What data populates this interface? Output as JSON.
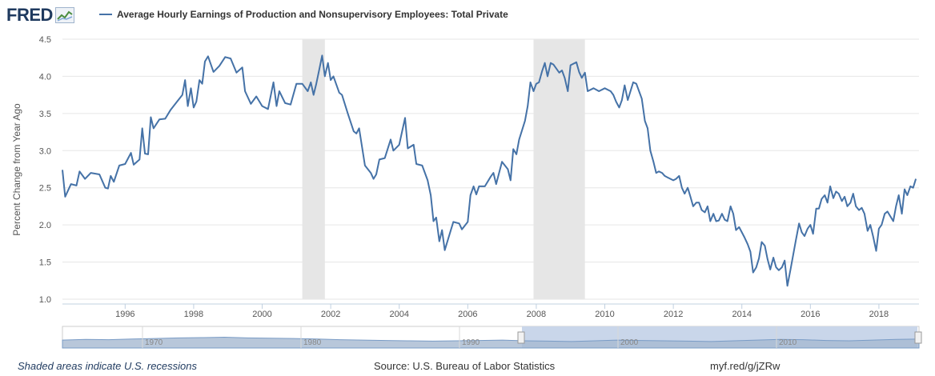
{
  "brand": {
    "name": "FRED",
    "mark": "line-chart-logo-icon"
  },
  "legend": {
    "label": "Average Hourly Earnings of Production and Nonsupervisory Employees: Total Private",
    "color": "#4572a7"
  },
  "footer": {
    "note": "Shaded areas indicate U.S. recessions",
    "source": "Source: U.S. Bureau of Labor Statistics",
    "link": "myf.red/g/jZRw"
  },
  "colors": {
    "line": "#4572a7",
    "recession": "#e6e6e6",
    "grid": "#e6e6e6",
    "navigator_fill": "#a6b9d1",
    "navigator_sel": "#c9d6ea"
  },
  "chart_data": {
    "type": "line",
    "title": "Average Hourly Earnings of Production and Nonsupervisory Employees: Total Private",
    "ylabel": "Percent Change from Year Ago",
    "xlabel": "",
    "xlim": [
      1994.17,
      2019.17
    ],
    "ylim": [
      1.0,
      4.5
    ],
    "yticks": [
      "1.0",
      "1.5",
      "2.0",
      "2.5",
      "3.0",
      "3.5",
      "4.0",
      "4.5"
    ],
    "xticks": [
      "1996",
      "1998",
      "2000",
      "2002",
      "2004",
      "2006",
      "2008",
      "2010",
      "2012",
      "2014",
      "2016",
      "2018"
    ],
    "recessions": [
      [
        2001.17,
        2001.83
      ],
      [
        2007.92,
        2009.42
      ]
    ],
    "navigator_ticks": [
      "1970",
      "1980",
      "1990",
      "2000",
      "2010"
    ],
    "series": [
      {
        "name": "Average Hourly Earnings of Production and Nonsupervisory Employees: Total Private",
        "points": [
          [
            1994.17,
            2.74
          ],
          [
            1994.25,
            2.38
          ],
          [
            1994.42,
            2.55
          ],
          [
            1994.58,
            2.53
          ],
          [
            1994.67,
            2.72
          ],
          [
            1994.83,
            2.62
          ],
          [
            1995.0,
            2.7
          ],
          [
            1995.25,
            2.68
          ],
          [
            1995.42,
            2.5
          ],
          [
            1995.5,
            2.49
          ],
          [
            1995.58,
            2.66
          ],
          [
            1995.67,
            2.58
          ],
          [
            1995.83,
            2.8
          ],
          [
            1996.0,
            2.82
          ],
          [
            1996.17,
            2.97
          ],
          [
            1996.25,
            2.81
          ],
          [
            1996.42,
            2.88
          ],
          [
            1996.5,
            3.3
          ],
          [
            1996.58,
            2.96
          ],
          [
            1996.67,
            2.95
          ],
          [
            1996.75,
            3.45
          ],
          [
            1996.83,
            3.3
          ],
          [
            1997.0,
            3.42
          ],
          [
            1997.17,
            3.43
          ],
          [
            1997.33,
            3.55
          ],
          [
            1997.5,
            3.65
          ],
          [
            1997.67,
            3.75
          ],
          [
            1997.75,
            3.95
          ],
          [
            1997.83,
            3.6
          ],
          [
            1997.92,
            3.84
          ],
          [
            1998.0,
            3.58
          ],
          [
            1998.08,
            3.66
          ],
          [
            1998.17,
            3.95
          ],
          [
            1998.25,
            3.9
          ],
          [
            1998.33,
            4.2
          ],
          [
            1998.42,
            4.27
          ],
          [
            1998.58,
            4.06
          ],
          [
            1998.75,
            4.14
          ],
          [
            1998.92,
            4.26
          ],
          [
            1999.08,
            4.24
          ],
          [
            1999.25,
            4.05
          ],
          [
            1999.42,
            4.12
          ],
          [
            1999.5,
            3.8
          ],
          [
            1999.67,
            3.63
          ],
          [
            1999.83,
            3.73
          ],
          [
            2000.0,
            3.6
          ],
          [
            2000.17,
            3.56
          ],
          [
            2000.33,
            3.92
          ],
          [
            2000.42,
            3.6
          ],
          [
            2000.5,
            3.8
          ],
          [
            2000.67,
            3.64
          ],
          [
            2000.83,
            3.62
          ],
          [
            2001.0,
            3.9
          ],
          [
            2001.17,
            3.9
          ],
          [
            2001.33,
            3.8
          ],
          [
            2001.42,
            3.92
          ],
          [
            2001.5,
            3.75
          ],
          [
            2001.58,
            3.9
          ],
          [
            2001.67,
            4.1
          ],
          [
            2001.75,
            4.28
          ],
          [
            2001.83,
            4.0
          ],
          [
            2001.92,
            4.18
          ],
          [
            2002.0,
            3.95
          ],
          [
            2002.08,
            4.0
          ],
          [
            2002.25,
            3.78
          ],
          [
            2002.33,
            3.75
          ],
          [
            2002.5,
            3.5
          ],
          [
            2002.67,
            3.26
          ],
          [
            2002.75,
            3.23
          ],
          [
            2002.83,
            3.3
          ],
          [
            2003.0,
            2.8
          ],
          [
            2003.17,
            2.7
          ],
          [
            2003.25,
            2.62
          ],
          [
            2003.33,
            2.68
          ],
          [
            2003.42,
            2.88
          ],
          [
            2003.58,
            2.9
          ],
          [
            2003.75,
            3.15
          ],
          [
            2003.83,
            3.0
          ],
          [
            2004.0,
            3.08
          ],
          [
            2004.17,
            3.44
          ],
          [
            2004.25,
            3.03
          ],
          [
            2004.42,
            3.08
          ],
          [
            2004.5,
            2.82
          ],
          [
            2004.67,
            2.8
          ],
          [
            2004.83,
            2.6
          ],
          [
            2004.92,
            2.4
          ],
          [
            2005.0,
            2.05
          ],
          [
            2005.08,
            2.1
          ],
          [
            2005.17,
            1.78
          ],
          [
            2005.25,
            1.93
          ],
          [
            2005.33,
            1.66
          ],
          [
            2005.5,
            1.92
          ],
          [
            2005.58,
            2.04
          ],
          [
            2005.75,
            2.02
          ],
          [
            2005.83,
            1.94
          ],
          [
            2006.0,
            2.04
          ],
          [
            2006.08,
            2.4
          ],
          [
            2006.17,
            2.52
          ],
          [
            2006.25,
            2.41
          ],
          [
            2006.33,
            2.52
          ],
          [
            2006.5,
            2.52
          ],
          [
            2006.67,
            2.65
          ],
          [
            2006.75,
            2.7
          ],
          [
            2006.83,
            2.55
          ],
          [
            2007.0,
            2.85
          ],
          [
            2007.17,
            2.75
          ],
          [
            2007.25,
            2.6
          ],
          [
            2007.33,
            3.02
          ],
          [
            2007.42,
            2.95
          ],
          [
            2007.5,
            3.15
          ],
          [
            2007.67,
            3.4
          ],
          [
            2007.75,
            3.6
          ],
          [
            2007.83,
            3.92
          ],
          [
            2007.92,
            3.8
          ],
          [
            2008.0,
            3.9
          ],
          [
            2008.08,
            3.92
          ],
          [
            2008.17,
            4.07
          ],
          [
            2008.25,
            4.18
          ],
          [
            2008.33,
            4.0
          ],
          [
            2008.42,
            4.18
          ],
          [
            2008.5,
            4.16
          ],
          [
            2008.67,
            4.05
          ],
          [
            2008.75,
            4.08
          ],
          [
            2008.83,
            3.98
          ],
          [
            2008.92,
            3.8
          ],
          [
            2009.0,
            4.15
          ],
          [
            2009.17,
            4.19
          ],
          [
            2009.25,
            4.06
          ],
          [
            2009.33,
            3.98
          ],
          [
            2009.42,
            4.05
          ],
          [
            2009.5,
            3.8
          ],
          [
            2009.67,
            3.84
          ],
          [
            2009.83,
            3.8
          ],
          [
            2010.0,
            3.84
          ],
          [
            2010.17,
            3.8
          ],
          [
            2010.25,
            3.75
          ],
          [
            2010.33,
            3.66
          ],
          [
            2010.42,
            3.58
          ],
          [
            2010.5,
            3.68
          ],
          [
            2010.58,
            3.88
          ],
          [
            2010.67,
            3.68
          ],
          [
            2010.83,
            3.92
          ],
          [
            2010.92,
            3.9
          ],
          [
            2011.0,
            3.8
          ],
          [
            2011.08,
            3.7
          ],
          [
            2011.17,
            3.4
          ],
          [
            2011.25,
            3.3
          ],
          [
            2011.33,
            3.0
          ],
          [
            2011.42,
            2.85
          ],
          [
            2011.5,
            2.7
          ],
          [
            2011.58,
            2.72
          ],
          [
            2011.67,
            2.7
          ],
          [
            2011.75,
            2.66
          ],
          [
            2011.83,
            2.64
          ],
          [
            2012.0,
            2.6
          ],
          [
            2012.08,
            2.62
          ],
          [
            2012.17,
            2.66
          ],
          [
            2012.25,
            2.5
          ],
          [
            2012.33,
            2.42
          ],
          [
            2012.42,
            2.5
          ],
          [
            2012.5,
            2.38
          ],
          [
            2012.58,
            2.25
          ],
          [
            2012.67,
            2.3
          ],
          [
            2012.75,
            2.3
          ],
          [
            2012.83,
            2.2
          ],
          [
            2012.92,
            2.17
          ],
          [
            2013.0,
            2.25
          ],
          [
            2013.08,
            2.05
          ],
          [
            2013.17,
            2.15
          ],
          [
            2013.25,
            2.05
          ],
          [
            2013.33,
            2.06
          ],
          [
            2013.42,
            2.15
          ],
          [
            2013.5,
            2.07
          ],
          [
            2013.58,
            2.05
          ],
          [
            2013.67,
            2.25
          ],
          [
            2013.75,
            2.15
          ],
          [
            2013.83,
            1.93
          ],
          [
            2013.92,
            1.97
          ],
          [
            2014.0,
            1.9
          ],
          [
            2014.08,
            1.83
          ],
          [
            2014.17,
            1.74
          ],
          [
            2014.25,
            1.64
          ],
          [
            2014.33,
            1.36
          ],
          [
            2014.42,
            1.43
          ],
          [
            2014.5,
            1.55
          ],
          [
            2014.58,
            1.77
          ],
          [
            2014.67,
            1.72
          ],
          [
            2014.75,
            1.54
          ],
          [
            2014.83,
            1.4
          ],
          [
            2014.92,
            1.56
          ],
          [
            2015.0,
            1.43
          ],
          [
            2015.08,
            1.39
          ],
          [
            2015.17,
            1.43
          ],
          [
            2015.25,
            1.52
          ],
          [
            2015.33,
            1.18
          ],
          [
            2015.42,
            1.4
          ],
          [
            2015.5,
            1.6
          ],
          [
            2015.58,
            1.8
          ],
          [
            2015.67,
            2.02
          ],
          [
            2015.75,
            1.9
          ],
          [
            2015.83,
            1.85
          ],
          [
            2015.92,
            1.95
          ],
          [
            2016.0,
            2.0
          ],
          [
            2016.08,
            1.88
          ],
          [
            2016.17,
            2.22
          ],
          [
            2016.25,
            2.22
          ],
          [
            2016.33,
            2.35
          ],
          [
            2016.42,
            2.4
          ],
          [
            2016.5,
            2.3
          ],
          [
            2016.58,
            2.52
          ],
          [
            2016.67,
            2.36
          ],
          [
            2016.75,
            2.45
          ],
          [
            2016.83,
            2.42
          ],
          [
            2016.92,
            2.32
          ],
          [
            2017.0,
            2.38
          ],
          [
            2017.08,
            2.25
          ],
          [
            2017.17,
            2.3
          ],
          [
            2017.25,
            2.42
          ],
          [
            2017.33,
            2.25
          ],
          [
            2017.42,
            2.2
          ],
          [
            2017.5,
            2.23
          ],
          [
            2017.58,
            2.15
          ],
          [
            2017.67,
            1.92
          ],
          [
            2017.75,
            2.0
          ],
          [
            2017.83,
            1.85
          ],
          [
            2017.92,
            1.65
          ],
          [
            2018.0,
            1.95
          ],
          [
            2018.08,
            2.0
          ],
          [
            2018.17,
            2.15
          ],
          [
            2018.25,
            2.18
          ],
          [
            2018.33,
            2.12
          ],
          [
            2018.42,
            2.05
          ],
          [
            2018.5,
            2.25
          ],
          [
            2018.58,
            2.4
          ],
          [
            2018.67,
            2.15
          ],
          [
            2018.75,
            2.48
          ],
          [
            2018.83,
            2.4
          ],
          [
            2018.92,
            2.52
          ],
          [
            2019.0,
            2.5
          ],
          [
            2019.08,
            2.62
          ]
        ]
      }
    ]
  }
}
